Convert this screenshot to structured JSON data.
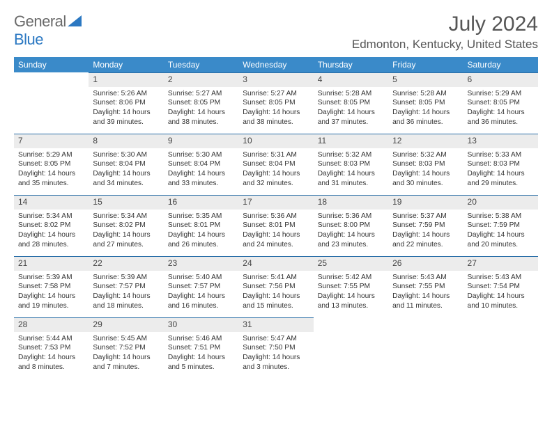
{
  "brand": {
    "part1": "General",
    "part2": "Blue"
  },
  "title": "July 2024",
  "location": "Edmonton, Kentucky, United States",
  "style": {
    "header_bg": "#3a8ac9",
    "header_text": "#ffffff",
    "daynum_bg": "#ececec",
    "daynum_border": "#2b6fa8",
    "body_text": "#333333",
    "title_color": "#555555",
    "logo_gray": "#6a6a6a",
    "logo_blue": "#2b78c2",
    "page_bg": "#ffffff",
    "font_family": "Arial",
    "month_fontsize": 30,
    "location_fontsize": 17,
    "header_fontsize": 12,
    "cell_fontsize": 10.2
  },
  "dayNames": [
    "Sunday",
    "Monday",
    "Tuesday",
    "Wednesday",
    "Thursday",
    "Friday",
    "Saturday"
  ],
  "weeks": [
    [
      null,
      {
        "n": "1",
        "sr": "5:26 AM",
        "ss": "8:06 PM",
        "dh": 14,
        "dm": 39
      },
      {
        "n": "2",
        "sr": "5:27 AM",
        "ss": "8:05 PM",
        "dh": 14,
        "dm": 38
      },
      {
        "n": "3",
        "sr": "5:27 AM",
        "ss": "8:05 PM",
        "dh": 14,
        "dm": 38
      },
      {
        "n": "4",
        "sr": "5:28 AM",
        "ss": "8:05 PM",
        "dh": 14,
        "dm": 37
      },
      {
        "n": "5",
        "sr": "5:28 AM",
        "ss": "8:05 PM",
        "dh": 14,
        "dm": 36
      },
      {
        "n": "6",
        "sr": "5:29 AM",
        "ss": "8:05 PM",
        "dh": 14,
        "dm": 36
      }
    ],
    [
      {
        "n": "7",
        "sr": "5:29 AM",
        "ss": "8:05 PM",
        "dh": 14,
        "dm": 35
      },
      {
        "n": "8",
        "sr": "5:30 AM",
        "ss": "8:04 PM",
        "dh": 14,
        "dm": 34
      },
      {
        "n": "9",
        "sr": "5:30 AM",
        "ss": "8:04 PM",
        "dh": 14,
        "dm": 33
      },
      {
        "n": "10",
        "sr": "5:31 AM",
        "ss": "8:04 PM",
        "dh": 14,
        "dm": 32
      },
      {
        "n": "11",
        "sr": "5:32 AM",
        "ss": "8:03 PM",
        "dh": 14,
        "dm": 31
      },
      {
        "n": "12",
        "sr": "5:32 AM",
        "ss": "8:03 PM",
        "dh": 14,
        "dm": 30
      },
      {
        "n": "13",
        "sr": "5:33 AM",
        "ss": "8:03 PM",
        "dh": 14,
        "dm": 29
      }
    ],
    [
      {
        "n": "14",
        "sr": "5:34 AM",
        "ss": "8:02 PM",
        "dh": 14,
        "dm": 28
      },
      {
        "n": "15",
        "sr": "5:34 AM",
        "ss": "8:02 PM",
        "dh": 14,
        "dm": 27
      },
      {
        "n": "16",
        "sr": "5:35 AM",
        "ss": "8:01 PM",
        "dh": 14,
        "dm": 26
      },
      {
        "n": "17",
        "sr": "5:36 AM",
        "ss": "8:01 PM",
        "dh": 14,
        "dm": 24
      },
      {
        "n": "18",
        "sr": "5:36 AM",
        "ss": "8:00 PM",
        "dh": 14,
        "dm": 23
      },
      {
        "n": "19",
        "sr": "5:37 AM",
        "ss": "7:59 PM",
        "dh": 14,
        "dm": 22
      },
      {
        "n": "20",
        "sr": "5:38 AM",
        "ss": "7:59 PM",
        "dh": 14,
        "dm": 20
      }
    ],
    [
      {
        "n": "21",
        "sr": "5:39 AM",
        "ss": "7:58 PM",
        "dh": 14,
        "dm": 19
      },
      {
        "n": "22",
        "sr": "5:39 AM",
        "ss": "7:57 PM",
        "dh": 14,
        "dm": 18
      },
      {
        "n": "23",
        "sr": "5:40 AM",
        "ss": "7:57 PM",
        "dh": 14,
        "dm": 16
      },
      {
        "n": "24",
        "sr": "5:41 AM",
        "ss": "7:56 PM",
        "dh": 14,
        "dm": 15
      },
      {
        "n": "25",
        "sr": "5:42 AM",
        "ss": "7:55 PM",
        "dh": 14,
        "dm": 13
      },
      {
        "n": "26",
        "sr": "5:43 AM",
        "ss": "7:55 PM",
        "dh": 14,
        "dm": 11
      },
      {
        "n": "27",
        "sr": "5:43 AM",
        "ss": "7:54 PM",
        "dh": 14,
        "dm": 10
      }
    ],
    [
      {
        "n": "28",
        "sr": "5:44 AM",
        "ss": "7:53 PM",
        "dh": 14,
        "dm": 8
      },
      {
        "n": "29",
        "sr": "5:45 AM",
        "ss": "7:52 PM",
        "dh": 14,
        "dm": 7
      },
      {
        "n": "30",
        "sr": "5:46 AM",
        "ss": "7:51 PM",
        "dh": 14,
        "dm": 5
      },
      {
        "n": "31",
        "sr": "5:47 AM",
        "ss": "7:50 PM",
        "dh": 14,
        "dm": 3
      },
      null,
      null,
      null
    ]
  ],
  "labels": {
    "sunrise": "Sunrise:",
    "sunset": "Sunset:",
    "daylight": "Daylight:",
    "hours": "hours",
    "and": "and",
    "minutes": "minutes."
  }
}
